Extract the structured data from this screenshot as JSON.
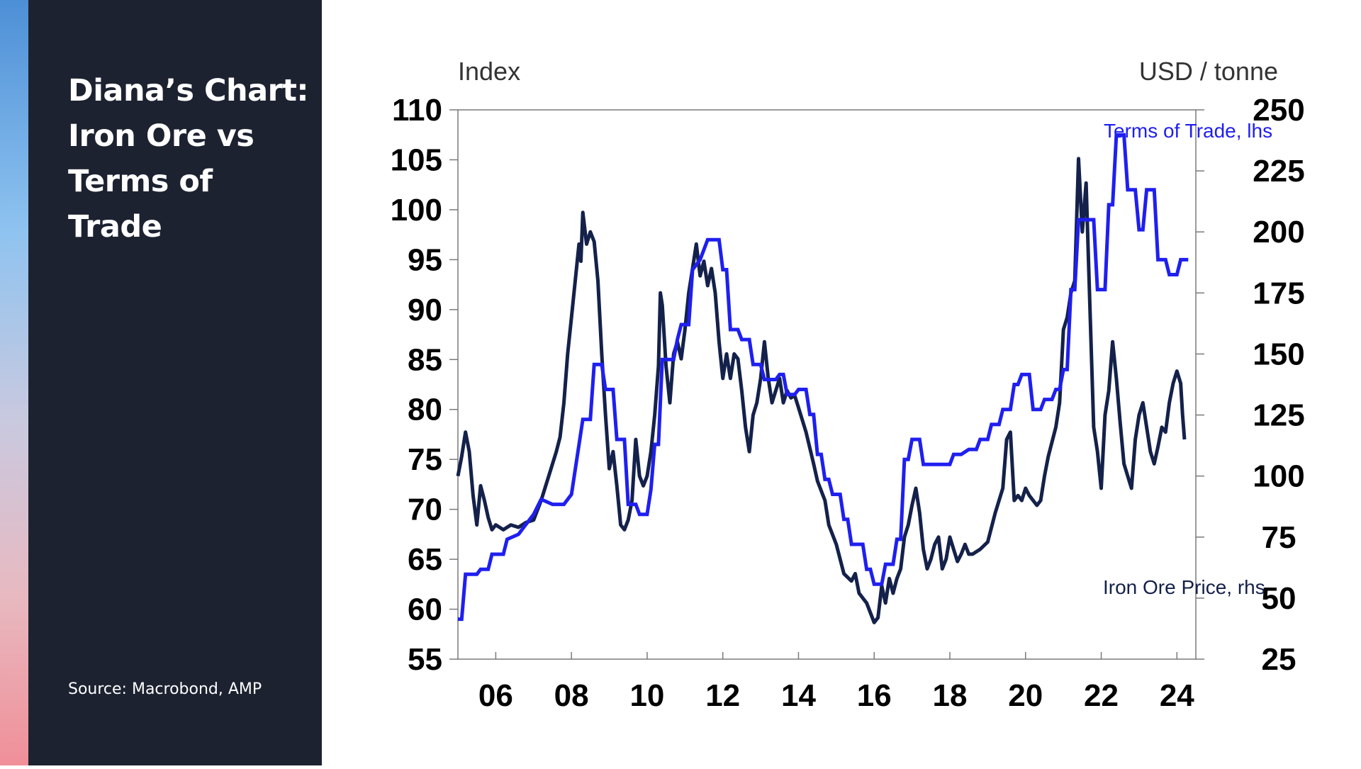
{
  "slide": {
    "title": "Diana’s Chart: Iron Ore vs Terms of Trade",
    "source": "Source: Macrobond, AMP"
  },
  "colors": {
    "panel": "#1c2230",
    "terms_of_trade": "#1f1ff0",
    "iron_ore": "#14214a"
  },
  "chart_data": {
    "type": "line",
    "title": "",
    "xlabel": "",
    "ylabel_left": "Index",
    "ylabel_right": "USD / tonne",
    "x_ticks": [
      "06",
      "08",
      "10",
      "12",
      "14",
      "16",
      "18",
      "20",
      "22",
      "24"
    ],
    "x_tick_years": [
      2006,
      2008,
      2010,
      2012,
      2014,
      2016,
      2018,
      2020,
      2022,
      2024
    ],
    "xlim": [
      2005.0,
      2024.5
    ],
    "ylim_left": [
      55,
      110
    ],
    "ylim_right": [
      25,
      250
    ],
    "yticks_left": [
      55,
      60,
      65,
      70,
      75,
      80,
      85,
      90,
      95,
      100,
      105,
      110
    ],
    "yticks_right": [
      25,
      50,
      75,
      100,
      125,
      150,
      175,
      200,
      225,
      250
    ],
    "grid": false,
    "series": [
      {
        "name": "Terms of Trade, lhs",
        "axis": "left",
        "style": "step",
        "points": [
          [
            2005.0,
            59.0
          ],
          [
            2005.1,
            59.0
          ],
          [
            2005.2,
            63.5
          ],
          [
            2005.5,
            63.5
          ],
          [
            2005.6,
            64.0
          ],
          [
            2005.8,
            64.0
          ],
          [
            2005.9,
            65.5
          ],
          [
            2006.2,
            65.5
          ],
          [
            2006.3,
            67.0
          ],
          [
            2006.6,
            67.5
          ],
          [
            2006.8,
            68.5
          ],
          [
            2007.0,
            69.5
          ],
          [
            2007.2,
            71.0
          ],
          [
            2007.5,
            70.5
          ],
          [
            2007.8,
            70.5
          ],
          [
            2008.0,
            71.5
          ],
          [
            2008.3,
            79.0
          ],
          [
            2008.5,
            79.0
          ],
          [
            2008.6,
            84.5
          ],
          [
            2008.8,
            84.5
          ],
          [
            2008.9,
            82.0
          ],
          [
            2009.1,
            82.0
          ],
          [
            2009.2,
            77.0
          ],
          [
            2009.4,
            77.0
          ],
          [
            2009.5,
            70.5
          ],
          [
            2009.7,
            70.5
          ],
          [
            2009.8,
            69.5
          ],
          [
            2010.0,
            69.5
          ],
          [
            2010.1,
            72.0
          ],
          [
            2010.2,
            76.5
          ],
          [
            2010.3,
            76.5
          ],
          [
            2010.4,
            85.0
          ],
          [
            2010.7,
            85.0
          ],
          [
            2010.8,
            87.0
          ],
          [
            2010.9,
            88.5
          ],
          [
            2011.1,
            88.5
          ],
          [
            2011.2,
            94.0
          ],
          [
            2011.4,
            95.0
          ],
          [
            2011.6,
            97.0
          ],
          [
            2011.9,
            97.0
          ],
          [
            2012.0,
            94.0
          ],
          [
            2012.1,
            94.0
          ],
          [
            2012.2,
            88.0
          ],
          [
            2012.4,
            88.0
          ],
          [
            2012.5,
            87.0
          ],
          [
            2012.7,
            87.0
          ],
          [
            2012.8,
            84.5
          ],
          [
            2013.0,
            84.5
          ],
          [
            2013.1,
            83.0
          ],
          [
            2013.4,
            83.0
          ],
          [
            2013.5,
            83.5
          ],
          [
            2013.6,
            83.5
          ],
          [
            2013.7,
            81.5
          ],
          [
            2013.9,
            81.5
          ],
          [
            2014.0,
            82.0
          ],
          [
            2014.2,
            82.0
          ],
          [
            2014.3,
            79.5
          ],
          [
            2014.4,
            79.5
          ],
          [
            2014.5,
            75.5
          ],
          [
            2014.6,
            75.5
          ],
          [
            2014.7,
            73.0
          ],
          [
            2014.8,
            73.0
          ],
          [
            2014.9,
            71.5
          ],
          [
            2015.1,
            71.5
          ],
          [
            2015.2,
            69.0
          ],
          [
            2015.3,
            69.0
          ],
          [
            2015.4,
            66.5
          ],
          [
            2015.7,
            66.5
          ],
          [
            2015.8,
            64.0
          ],
          [
            2015.9,
            64.0
          ],
          [
            2016.0,
            62.5
          ],
          [
            2016.2,
            62.5
          ],
          [
            2016.3,
            64.5
          ],
          [
            2016.5,
            64.5
          ],
          [
            2016.6,
            67.0
          ],
          [
            2016.7,
            67.0
          ],
          [
            2016.8,
            75.0
          ],
          [
            2016.9,
            75.0
          ],
          [
            2017.0,
            77.0
          ],
          [
            2017.2,
            77.0
          ],
          [
            2017.3,
            74.5
          ],
          [
            2017.6,
            74.5
          ],
          [
            2017.8,
            74.5
          ],
          [
            2018.0,
            74.5
          ],
          [
            2018.1,
            75.5
          ],
          [
            2018.3,
            75.5
          ],
          [
            2018.5,
            76.0
          ],
          [
            2018.7,
            76.0
          ],
          [
            2018.8,
            77.0
          ],
          [
            2019.0,
            77.0
          ],
          [
            2019.1,
            78.5
          ],
          [
            2019.3,
            78.5
          ],
          [
            2019.4,
            80.0
          ],
          [
            2019.6,
            80.0
          ],
          [
            2019.7,
            82.5
          ],
          [
            2019.8,
            82.5
          ],
          [
            2019.9,
            83.5
          ],
          [
            2020.1,
            83.5
          ],
          [
            2020.2,
            80.0
          ],
          [
            2020.4,
            80.0
          ],
          [
            2020.5,
            81.0
          ],
          [
            2020.7,
            81.0
          ],
          [
            2020.8,
            82.0
          ],
          [
            2020.9,
            82.0
          ],
          [
            2021.0,
            84.0
          ],
          [
            2021.1,
            84.0
          ],
          [
            2021.2,
            92.0
          ],
          [
            2021.3,
            92.0
          ],
          [
            2021.4,
            99.0
          ],
          [
            2021.8,
            99.0
          ],
          [
            2021.9,
            92.0
          ],
          [
            2022.1,
            92.0
          ],
          [
            2022.2,
            100.5
          ],
          [
            2022.3,
            100.5
          ],
          [
            2022.4,
            107.5
          ],
          [
            2022.6,
            107.5
          ],
          [
            2022.7,
            102.0
          ],
          [
            2022.9,
            102.0
          ],
          [
            2023.0,
            98.0
          ],
          [
            2023.1,
            98.0
          ],
          [
            2023.2,
            102.0
          ],
          [
            2023.4,
            102.0
          ],
          [
            2023.5,
            95.0
          ],
          [
            2023.7,
            95.0
          ],
          [
            2023.8,
            93.5
          ],
          [
            2024.0,
            93.5
          ],
          [
            2024.1,
            95.0
          ],
          [
            2024.3,
            95.0
          ]
        ]
      },
      {
        "name": "Iron Ore Price, rhs",
        "axis": "right",
        "style": "line",
        "points": [
          [
            2005.0,
            100
          ],
          [
            2005.1,
            108
          ],
          [
            2005.2,
            118
          ],
          [
            2005.3,
            110
          ],
          [
            2005.4,
            92
          ],
          [
            2005.5,
            80
          ],
          [
            2005.6,
            96
          ],
          [
            2005.7,
            90
          ],
          [
            2005.8,
            83
          ],
          [
            2005.9,
            78
          ],
          [
            2006.0,
            80
          ],
          [
            2006.2,
            78
          ],
          [
            2006.4,
            80
          ],
          [
            2006.6,
            79
          ],
          [
            2006.8,
            81
          ],
          [
            2007.0,
            82
          ],
          [
            2007.2,
            90
          ],
          [
            2007.4,
            100
          ],
          [
            2007.6,
            110
          ],
          [
            2007.7,
            116
          ],
          [
            2007.8,
            130
          ],
          [
            2007.9,
            150
          ],
          [
            2008.0,
            165
          ],
          [
            2008.1,
            180
          ],
          [
            2008.2,
            195
          ],
          [
            2008.25,
            188
          ],
          [
            2008.3,
            208
          ],
          [
            2008.4,
            195
          ],
          [
            2008.5,
            200
          ],
          [
            2008.6,
            196
          ],
          [
            2008.7,
            180
          ],
          [
            2008.8,
            150
          ],
          [
            2008.9,
            125
          ],
          [
            2009.0,
            103
          ],
          [
            2009.1,
            110
          ],
          [
            2009.2,
            96
          ],
          [
            2009.3,
            80
          ],
          [
            2009.4,
            78
          ],
          [
            2009.5,
            82
          ],
          [
            2009.6,
            90
          ],
          [
            2009.7,
            115
          ],
          [
            2009.8,
            100
          ],
          [
            2009.9,
            96
          ],
          [
            2010.0,
            100
          ],
          [
            2010.1,
            110
          ],
          [
            2010.2,
            125
          ],
          [
            2010.3,
            145
          ],
          [
            2010.35,
            175
          ],
          [
            2010.4,
            170
          ],
          [
            2010.5,
            145
          ],
          [
            2010.6,
            130
          ],
          [
            2010.7,
            150
          ],
          [
            2010.8,
            155
          ],
          [
            2010.9,
            148
          ],
          [
            2011.0,
            160
          ],
          [
            2011.1,
            175
          ],
          [
            2011.2,
            185
          ],
          [
            2011.3,
            195
          ],
          [
            2011.4,
            182
          ],
          [
            2011.5,
            188
          ],
          [
            2011.6,
            178
          ],
          [
            2011.7,
            185
          ],
          [
            2011.8,
            175
          ],
          [
            2011.9,
            155
          ],
          [
            2012.0,
            140
          ],
          [
            2012.1,
            150
          ],
          [
            2012.2,
            140
          ],
          [
            2012.3,
            150
          ],
          [
            2012.4,
            148
          ],
          [
            2012.5,
            135
          ],
          [
            2012.6,
            120
          ],
          [
            2012.7,
            110
          ],
          [
            2012.8,
            125
          ],
          [
            2012.9,
            130
          ],
          [
            2013.0,
            140
          ],
          [
            2013.1,
            155
          ],
          [
            2013.2,
            140
          ],
          [
            2013.3,
            130
          ],
          [
            2013.4,
            135
          ],
          [
            2013.5,
            140
          ],
          [
            2013.6,
            130
          ],
          [
            2013.7,
            135
          ],
          [
            2013.8,
            132
          ],
          [
            2013.9,
            133
          ],
          [
            2014.0,
            128
          ],
          [
            2014.2,
            118
          ],
          [
            2014.4,
            105
          ],
          [
            2014.5,
            98
          ],
          [
            2014.7,
            90
          ],
          [
            2014.8,
            80
          ],
          [
            2015.0,
            72
          ],
          [
            2015.2,
            60
          ],
          [
            2015.4,
            57
          ],
          [
            2015.5,
            60
          ],
          [
            2015.6,
            52
          ],
          [
            2015.8,
            48
          ],
          [
            2016.0,
            40
          ],
          [
            2016.1,
            42
          ],
          [
            2016.2,
            55
          ],
          [
            2016.3,
            48
          ],
          [
            2016.4,
            58
          ],
          [
            2016.5,
            52
          ],
          [
            2016.6,
            58
          ],
          [
            2016.7,
            62
          ],
          [
            2016.8,
            75
          ],
          [
            2016.9,
            80
          ],
          [
            2017.0,
            88
          ],
          [
            2017.1,
            95
          ],
          [
            2017.2,
            85
          ],
          [
            2017.3,
            70
          ],
          [
            2017.4,
            62
          ],
          [
            2017.5,
            66
          ],
          [
            2017.6,
            72
          ],
          [
            2017.7,
            75
          ],
          [
            2017.8,
            62
          ],
          [
            2017.9,
            66
          ],
          [
            2018.0,
            75
          ],
          [
            2018.1,
            70
          ],
          [
            2018.2,
            65
          ],
          [
            2018.3,
            68
          ],
          [
            2018.4,
            72
          ],
          [
            2018.5,
            68
          ],
          [
            2018.6,
            68
          ],
          [
            2018.8,
            70
          ],
          [
            2019.0,
            73
          ],
          [
            2019.2,
            85
          ],
          [
            2019.4,
            95
          ],
          [
            2019.5,
            115
          ],
          [
            2019.6,
            118
          ],
          [
            2019.7,
            90
          ],
          [
            2019.8,
            92
          ],
          [
            2019.9,
            90
          ],
          [
            2020.0,
            95
          ],
          [
            2020.1,
            92
          ],
          [
            2020.3,
            88
          ],
          [
            2020.4,
            90
          ],
          [
            2020.5,
            100
          ],
          [
            2020.6,
            108
          ],
          [
            2020.8,
            120
          ],
          [
            2020.9,
            130
          ],
          [
            2021.0,
            160
          ],
          [
            2021.1,
            165
          ],
          [
            2021.2,
            175
          ],
          [
            2021.3,
            180
          ],
          [
            2021.4,
            230
          ],
          [
            2021.5,
            200
          ],
          [
            2021.6,
            220
          ],
          [
            2021.7,
            170
          ],
          [
            2021.8,
            120
          ],
          [
            2021.9,
            110
          ],
          [
            2022.0,
            95
          ],
          [
            2022.1,
            125
          ],
          [
            2022.2,
            135
          ],
          [
            2022.3,
            155
          ],
          [
            2022.4,
            140
          ],
          [
            2022.5,
            122
          ],
          [
            2022.6,
            105
          ],
          [
            2022.7,
            100
          ],
          [
            2022.8,
            95
          ],
          [
            2022.9,
            115
          ],
          [
            2023.0,
            125
          ],
          [
            2023.1,
            130
          ],
          [
            2023.2,
            120
          ],
          [
            2023.3,
            110
          ],
          [
            2023.4,
            105
          ],
          [
            2023.5,
            112
          ],
          [
            2023.6,
            120
          ],
          [
            2023.7,
            118
          ],
          [
            2023.8,
            130
          ],
          [
            2023.9,
            138
          ],
          [
            2024.0,
            143
          ],
          [
            2024.1,
            138
          ],
          [
            2024.15,
            125
          ],
          [
            2024.2,
            115
          ]
        ]
      }
    ]
  }
}
